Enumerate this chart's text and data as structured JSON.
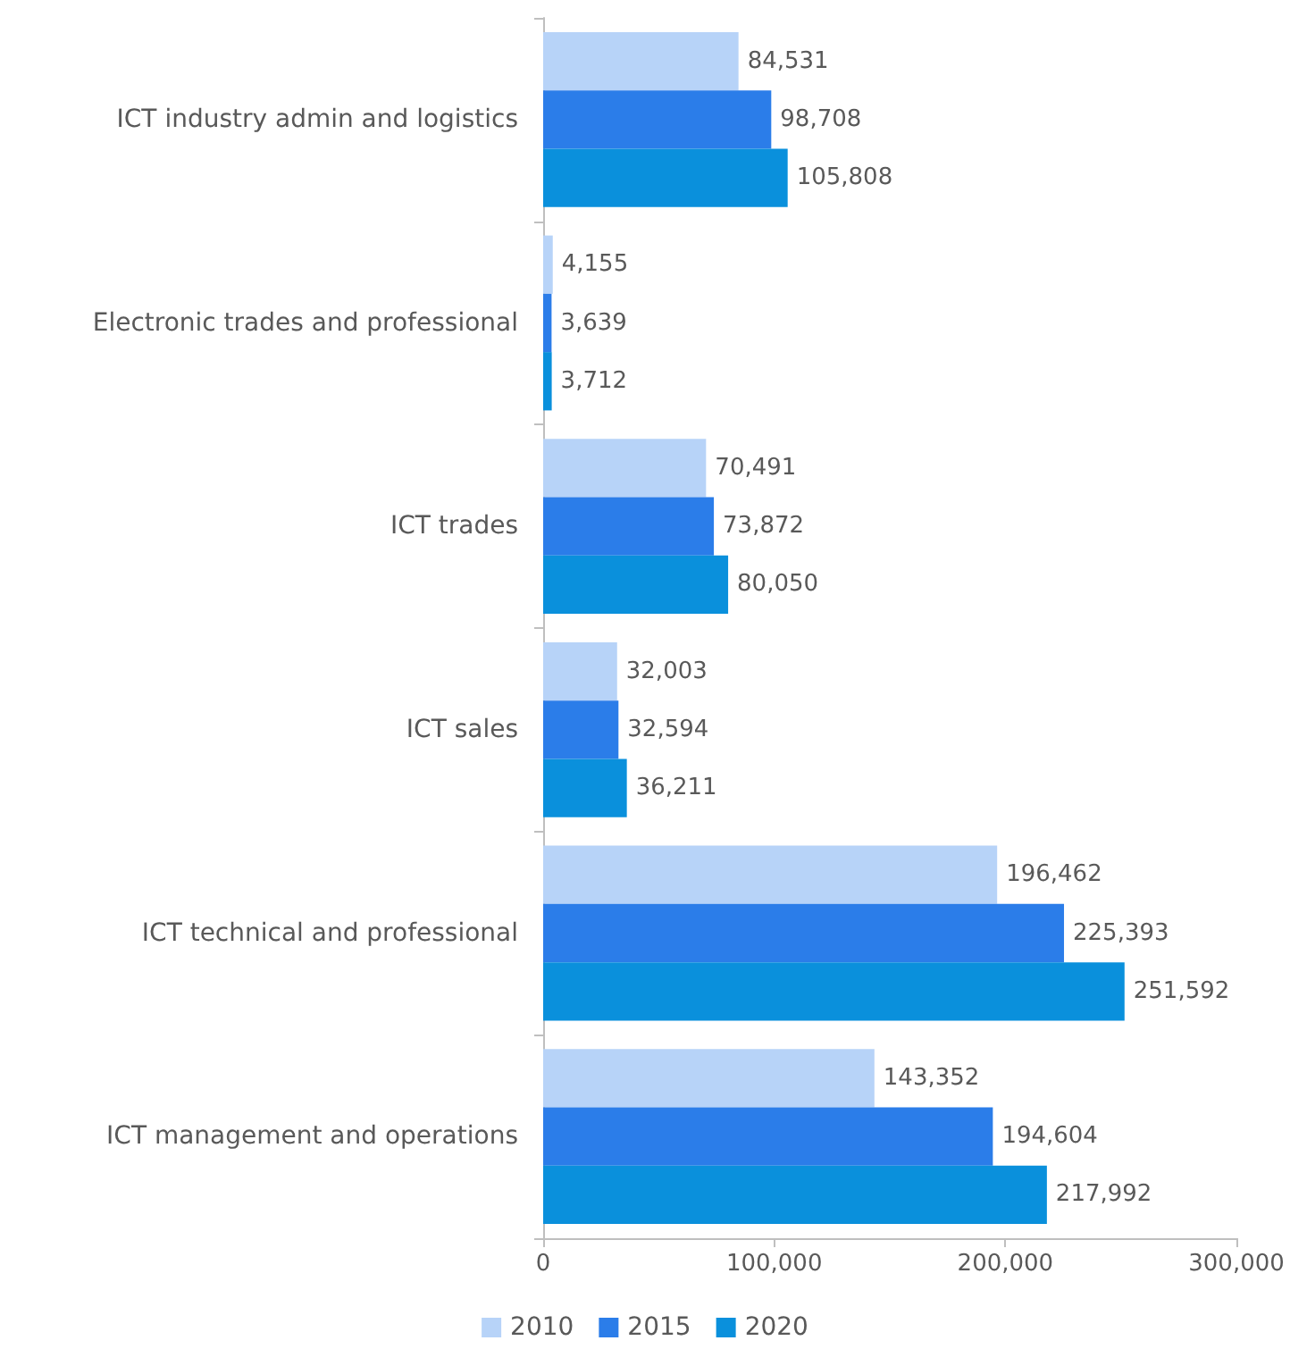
{
  "chart_data": {
    "type": "bar",
    "orientation": "horizontal",
    "categories": [
      "ICT industry admin and logistics",
      "Electronic trades and professional",
      "ICT trades",
      "ICT sales",
      "ICT technical and professional",
      "ICT management and operations"
    ],
    "series": [
      {
        "name": "2010",
        "color": "#b7d3f8",
        "values": [
          84531,
          4155,
          70491,
          32003,
          196462,
          143352
        ],
        "value_labels": [
          "84,531",
          "4,155",
          "70,491",
          "32,003",
          "196,462",
          "143,352"
        ]
      },
      {
        "name": "2015",
        "color": "#2b7de9",
        "values": [
          98708,
          3639,
          73872,
          32594,
          225393,
          194604
        ],
        "value_labels": [
          "98,708",
          "3,639",
          "73,872",
          "32,594",
          "225,393",
          "194,604"
        ]
      },
      {
        "name": "2020",
        "color": "#0a90dc",
        "values": [
          105808,
          3712,
          80050,
          36211,
          251592,
          217992
        ],
        "value_labels": [
          "105,808",
          "3,712",
          "80,050",
          "36,211",
          "251,592",
          "217,992"
        ]
      }
    ],
    "xlim": [
      0,
      300000
    ],
    "xticks": [
      {
        "value": 0,
        "label": "0"
      },
      {
        "value": 100000,
        "label": "100,000"
      },
      {
        "value": 200000,
        "label": "200,000"
      },
      {
        "value": 300000,
        "label": "300,000"
      }
    ],
    "grid": false,
    "legend": "bottom"
  }
}
